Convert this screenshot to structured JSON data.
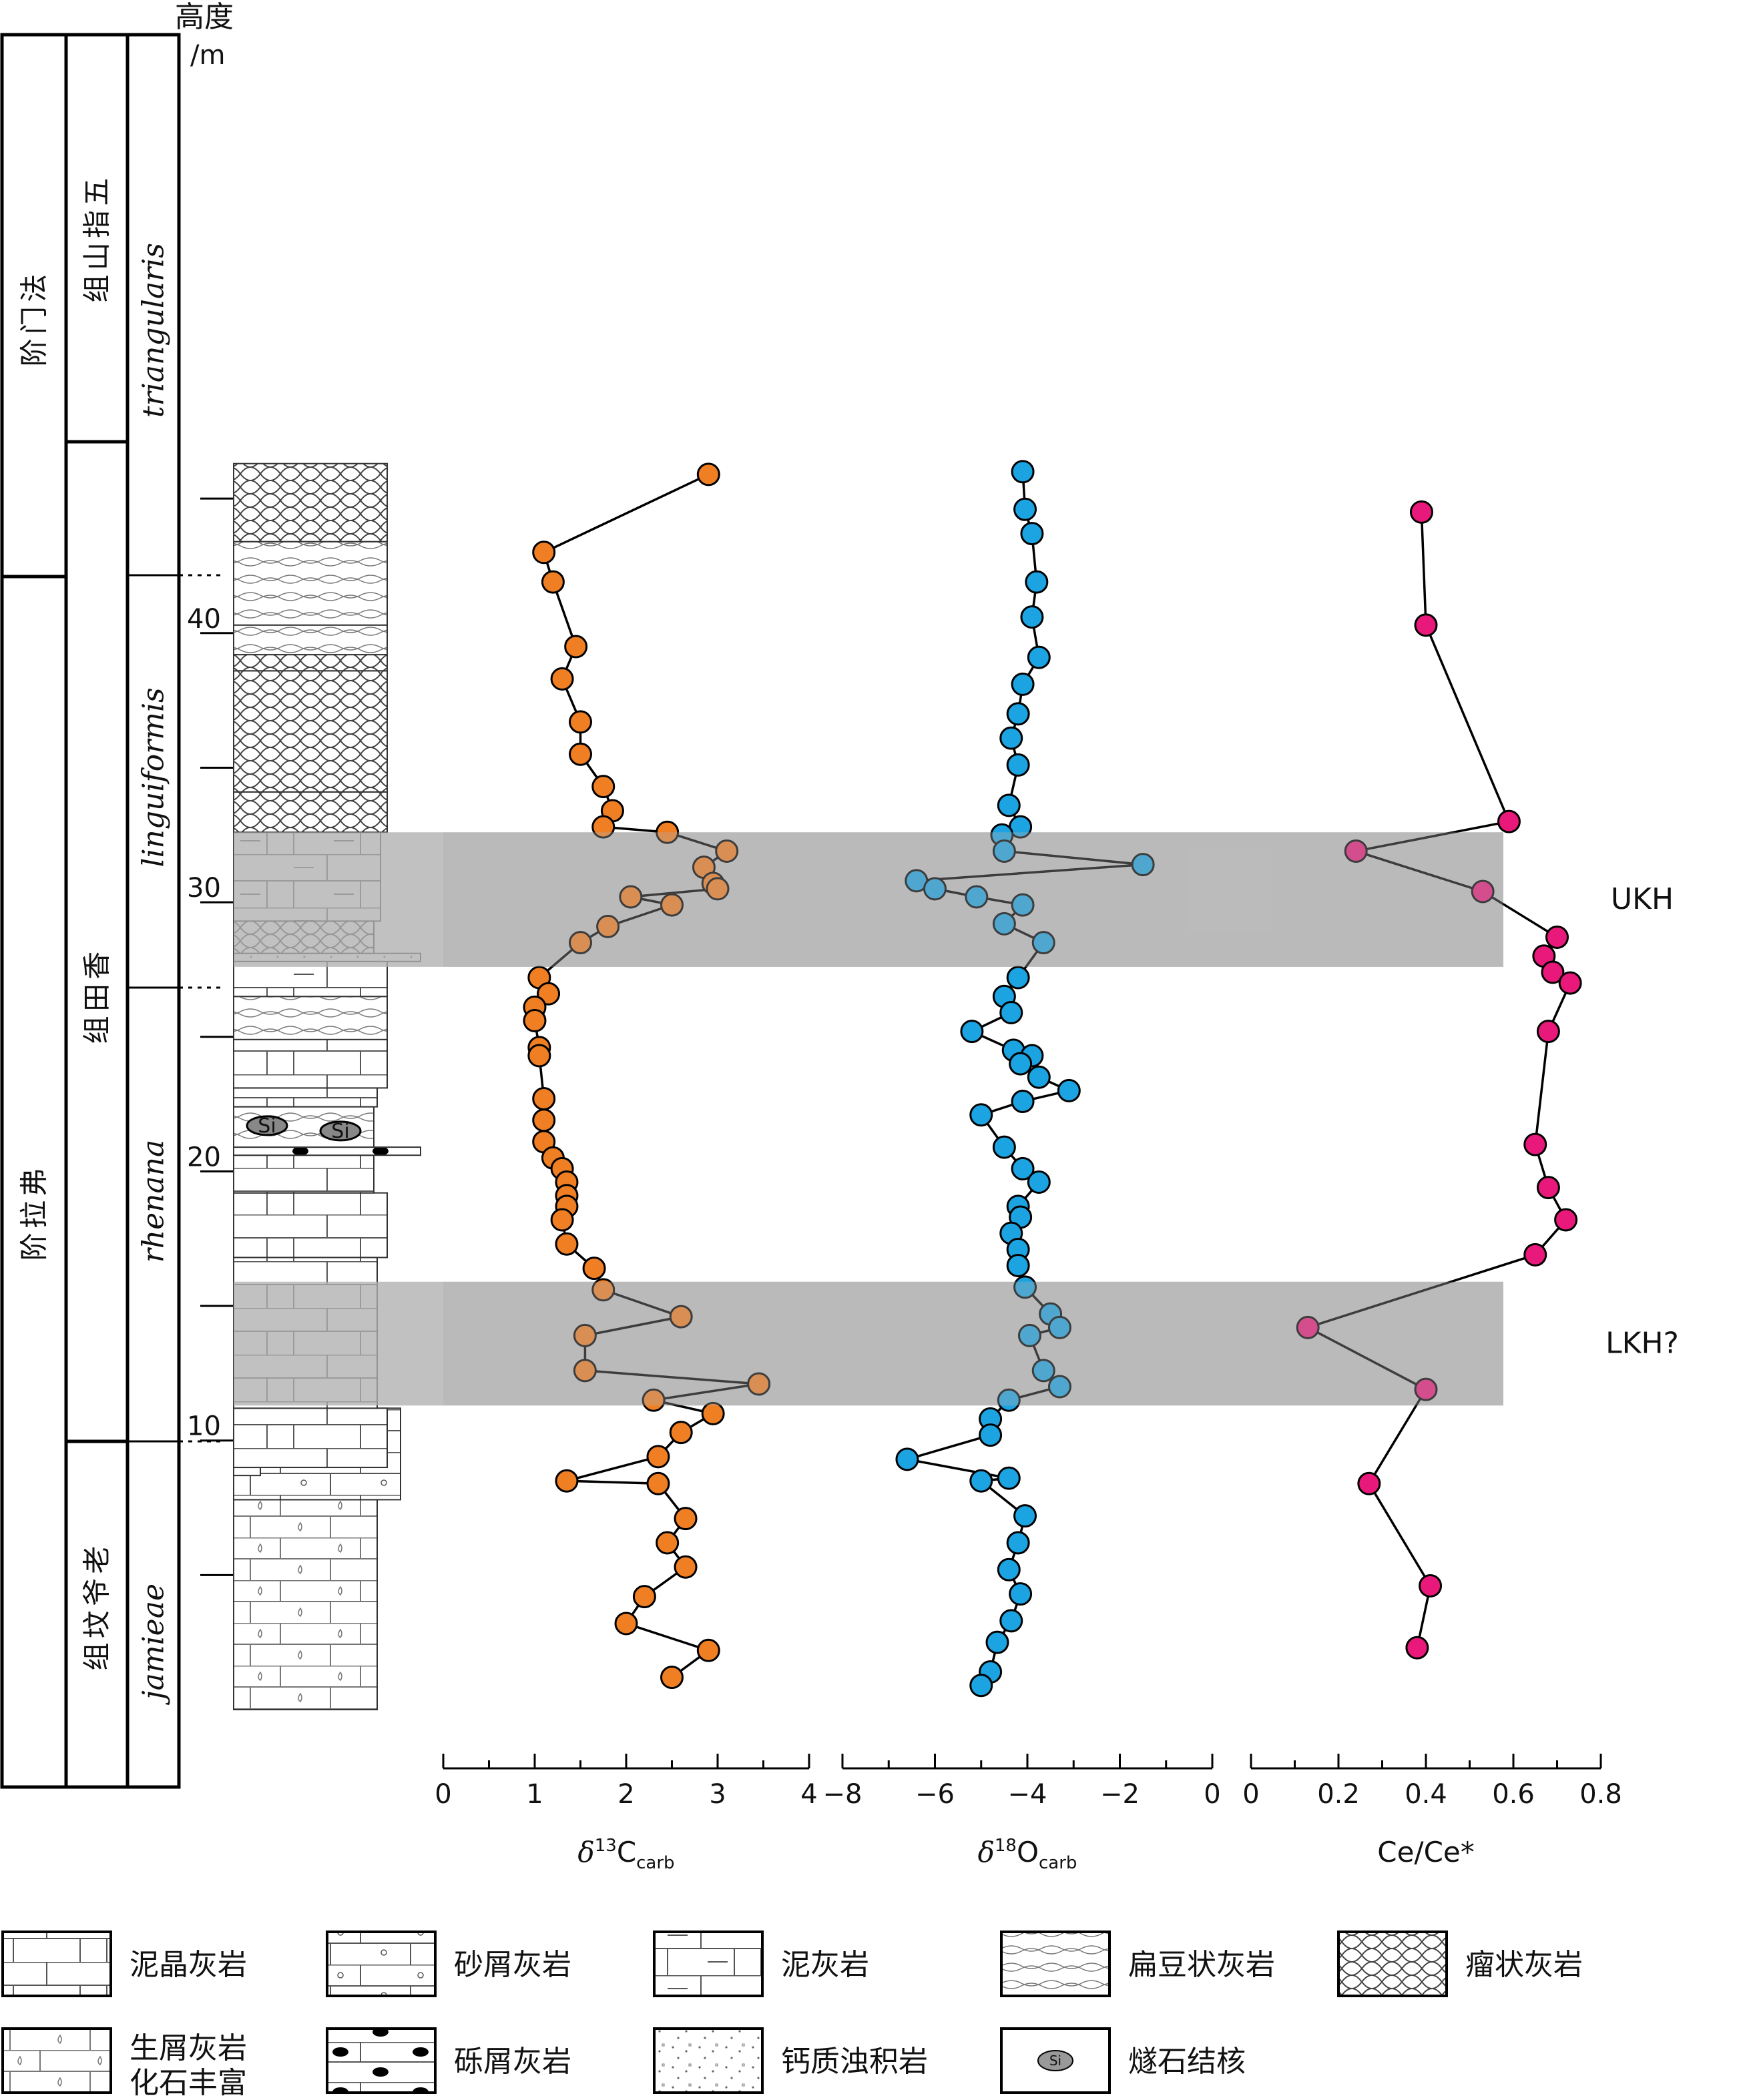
{
  "header": {
    "height_label": "高度",
    "height_unit": "/m"
  },
  "columns": {
    "stages": [
      "法门阶",
      "弗拉阶"
    ],
    "formations": [
      "五指山组",
      "香田组",
      "老爷坟组"
    ],
    "zones": [
      "triangularis",
      "linguiformis",
      "rhenana",
      "jamieae"
    ]
  },
  "height_ticks": [
    "40",
    "30",
    "20",
    "10"
  ],
  "events": [
    {
      "name": "UKH",
      "from_m": 27.6,
      "to_m": 32.6
    },
    {
      "name": "LKH?",
      "from_m": 11.3,
      "to_m": 15.9
    }
  ],
  "chart_data": [
    {
      "type": "line",
      "xlabel_main": "δ",
      "xlabel_sup": "13",
      "xlabel_rest": "C",
      "xlabel_sub": "carb",
      "x_ticks": [
        "0",
        "1",
        "2",
        "3",
        "4"
      ],
      "xlim": [
        0,
        4
      ],
      "color": "#f07f24",
      "points": [
        [
          2.9,
          45.9
        ],
        [
          1.1,
          43.0
        ],
        [
          1.2,
          41.9
        ],
        [
          1.45,
          39.5
        ],
        [
          1.3,
          38.3
        ],
        [
          1.5,
          36.7
        ],
        [
          1.5,
          35.5
        ],
        [
          1.75,
          34.3
        ],
        [
          1.85,
          33.4
        ],
        [
          1.75,
          32.8
        ],
        [
          2.45,
          32.6
        ],
        [
          3.1,
          31.9
        ],
        [
          2.85,
          31.3
        ],
        [
          2.95,
          30.7
        ],
        [
          3.0,
          30.5
        ],
        [
          2.05,
          30.2
        ],
        [
          2.5,
          29.9
        ],
        [
          1.8,
          29.1
        ],
        [
          1.5,
          28.5
        ],
        [
          1.05,
          27.2
        ],
        [
          1.15,
          26.6
        ],
        [
          1.0,
          26.1
        ],
        [
          1.0,
          25.6
        ],
        [
          1.05,
          24.6
        ],
        [
          1.05,
          24.3
        ],
        [
          1.1,
          22.7
        ],
        [
          1.1,
          21.9
        ],
        [
          1.1,
          21.1
        ],
        [
          1.2,
          20.5
        ],
        [
          1.3,
          20.1
        ],
        [
          1.35,
          19.6
        ],
        [
          1.35,
          19.1
        ],
        [
          1.35,
          18.7
        ],
        [
          1.3,
          18.2
        ],
        [
          1.35,
          17.3
        ],
        [
          1.65,
          16.4
        ],
        [
          1.75,
          15.6
        ],
        [
          2.6,
          14.6
        ],
        [
          1.55,
          13.9
        ],
        [
          1.55,
          12.6
        ],
        [
          3.45,
          12.1
        ],
        [
          2.3,
          11.5
        ],
        [
          2.95,
          11.0
        ],
        [
          2.6,
          10.3
        ],
        [
          2.35,
          9.4
        ],
        [
          1.35,
          8.5
        ],
        [
          2.35,
          8.4
        ],
        [
          2.65,
          7.1
        ],
        [
          2.45,
          6.2
        ],
        [
          2.65,
          5.3
        ],
        [
          2.2,
          4.2
        ],
        [
          2.0,
          3.2
        ],
        [
          2.9,
          2.2
        ],
        [
          2.5,
          1.2
        ]
      ]
    },
    {
      "type": "line",
      "xlabel_main": "δ",
      "xlabel_sup": "18",
      "xlabel_rest": "O",
      "xlabel_sub": "carb",
      "x_ticks": [
        "−8",
        "−6",
        "−4",
        "−2",
        "0"
      ],
      "xlim": [
        -8,
        0
      ],
      "color": "#1ca3e2",
      "points": [
        [
          -4.1,
          46.0
        ],
        [
          -4.05,
          44.6
        ],
        [
          -3.9,
          43.7
        ],
        [
          -3.8,
          41.9
        ],
        [
          -3.9,
          40.6
        ],
        [
          -3.75,
          39.1
        ],
        [
          -4.1,
          38.1
        ],
        [
          -4.2,
          37.0
        ],
        [
          -4.35,
          36.1
        ],
        [
          -4.2,
          35.1
        ],
        [
          -4.4,
          33.6
        ],
        [
          -4.15,
          32.8
        ],
        [
          -4.55,
          32.5
        ],
        [
          -4.5,
          31.9
        ],
        [
          -1.5,
          31.4
        ],
        [
          -6.4,
          30.8
        ],
        [
          -6.0,
          30.5
        ],
        [
          -5.1,
          30.2
        ],
        [
          -4.1,
          29.9
        ],
        [
          -4.5,
          29.2
        ],
        [
          -3.65,
          28.5
        ],
        [
          -4.2,
          27.2
        ],
        [
          -4.5,
          26.5
        ],
        [
          -4.35,
          25.9
        ],
        [
          -5.2,
          25.2
        ],
        [
          -4.3,
          24.5
        ],
        [
          -3.9,
          24.3
        ],
        [
          -4.15,
          24.0
        ],
        [
          -3.75,
          23.5
        ],
        [
          -3.1,
          23.0
        ],
        [
          -4.1,
          22.6
        ],
        [
          -5.0,
          22.1
        ],
        [
          -4.5,
          20.9
        ],
        [
          -4.1,
          20.1
        ],
        [
          -3.75,
          19.6
        ],
        [
          -4.2,
          18.7
        ],
        [
          -4.15,
          18.3
        ],
        [
          -4.35,
          17.7
        ],
        [
          -4.2,
          17.1
        ],
        [
          -4.2,
          16.5
        ],
        [
          -4.05,
          15.7
        ],
        [
          -3.5,
          14.7
        ],
        [
          -3.3,
          14.2
        ],
        [
          -3.95,
          13.9
        ],
        [
          -3.65,
          12.6
        ],
        [
          -3.3,
          12.0
        ],
        [
          -4.4,
          11.5
        ],
        [
          -4.8,
          10.8
        ],
        [
          -4.8,
          10.2
        ],
        [
          -6.6,
          9.3
        ],
        [
          -4.4,
          8.6
        ],
        [
          -5.0,
          8.5
        ],
        [
          -4.05,
          7.2
        ],
        [
          -4.2,
          6.2
        ],
        [
          -4.4,
          5.2
        ],
        [
          -4.15,
          4.3
        ],
        [
          -4.35,
          3.3
        ],
        [
          -4.65,
          2.5
        ],
        [
          -4.8,
          1.4
        ],
        [
          -5.0,
          0.9
        ]
      ]
    },
    {
      "type": "line",
      "xlabel_main": "Ce/Ce*",
      "x_ticks": [
        "0",
        "0.2",
        "0.4",
        "0.6",
        "0.8"
      ],
      "xlim": [
        0,
        0.8
      ],
      "color": "#e8197a",
      "points": [
        [
          0.39,
          44.5
        ],
        [
          0.4,
          40.3
        ],
        [
          0.59,
          33.0
        ],
        [
          0.24,
          31.9
        ],
        [
          0.53,
          30.4
        ],
        [
          0.7,
          28.7
        ],
        [
          0.67,
          28.0
        ],
        [
          0.69,
          27.4
        ],
        [
          0.73,
          27.0
        ],
        [
          0.68,
          25.2
        ],
        [
          0.65,
          21.0
        ],
        [
          0.68,
          19.4
        ],
        [
          0.72,
          18.2
        ],
        [
          0.65,
          16.9
        ],
        [
          0.13,
          14.2
        ],
        [
          0.4,
          11.9
        ],
        [
          0.27,
          8.4
        ],
        [
          0.41,
          4.6
        ],
        [
          0.38,
          2.3
        ]
      ]
    }
  ],
  "legend": [
    {
      "key": "micrite",
      "label": "泥晶灰岩"
    },
    {
      "key": "calcarenite",
      "label": "砂屑灰岩"
    },
    {
      "key": "argillaceous",
      "label": "泥灰岩"
    },
    {
      "key": "lenticular",
      "label": "扁豆状灰岩"
    },
    {
      "key": "nodular",
      "label": "瘤状灰岩"
    },
    {
      "key": "bioclastic",
      "label": "生屑灰岩",
      "label2": "化石丰富"
    },
    {
      "key": "rudstone",
      "label": "砾屑灰岩"
    },
    {
      "key": "turbidite",
      "label": "钙质浊积岩"
    },
    {
      "key": "chert",
      "label": "燧石结核",
      "symbol": "Si"
    }
  ]
}
